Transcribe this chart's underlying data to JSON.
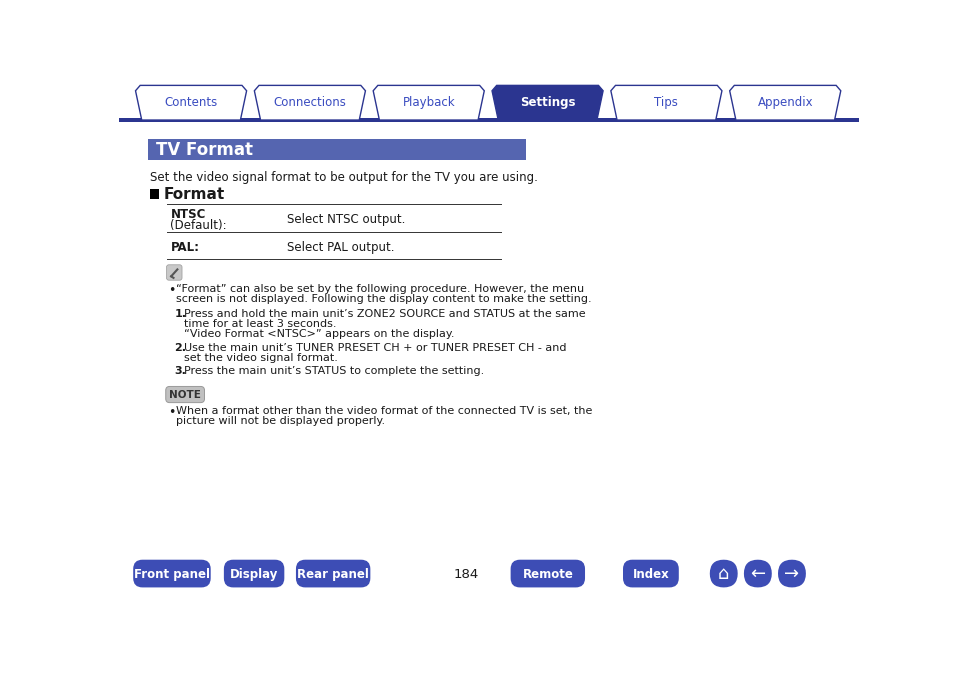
{
  "title": "TV Format",
  "title_bg": "#5565b0",
  "title_color": "#ffffff",
  "subtitle": "Set the video signal format to be output for the TV you are using.",
  "section_header": "Format",
  "table_rows": [
    {
      "label1": "NTSC",
      "label2": "(Default):",
      "value": "Select NTSC output."
    },
    {
      "label1": "PAL:",
      "label2": "",
      "value": "Select PAL output."
    }
  ],
  "note_intro": "“Format” can also be set by the following procedure. However, the menu\nscreen is not displayed. Following the display content to make the setting.",
  "steps": [
    {
      "lines": [
        "Press and hold the main unit’s ZONE2 SOURCE and STATUS at the same",
        "time for at least 3 seconds.",
        "“Video Format <NTSC>” appears on the display."
      ]
    },
    {
      "lines": [
        "Use the main unit’s TUNER PRESET CH + or TUNER PRESET CH - and",
        "set the video signal format."
      ]
    },
    {
      "lines": [
        "Press the main unit’s STATUS to complete the setting."
      ]
    }
  ],
  "note_text_lines": [
    "When a format other than the video format of the connected TV is set, the",
    "picture will not be displayed properly."
  ],
  "tab_labels": [
    "Contents",
    "Connections",
    "Playback",
    "Settings",
    "Tips",
    "Appendix"
  ],
  "active_tab": 3,
  "bottom_buttons": [
    "Front panel",
    "Display",
    "Rear panel",
    "Remote",
    "Index"
  ],
  "page_number": "184",
  "tab_line_color": "#2b3590",
  "tab_active_bg": "#2b3590",
  "tab_inactive_bg": "#ffffff",
  "tab_text_active": "#ffffff",
  "tab_text_inactive": "#3a4cc0",
  "bottom_btn_color": "#3d4db5",
  "bottom_btn_text": "#ffffff",
  "bg_color": "#ffffff",
  "text_color": "#1a1a1a",
  "table_line_color": "#333333"
}
